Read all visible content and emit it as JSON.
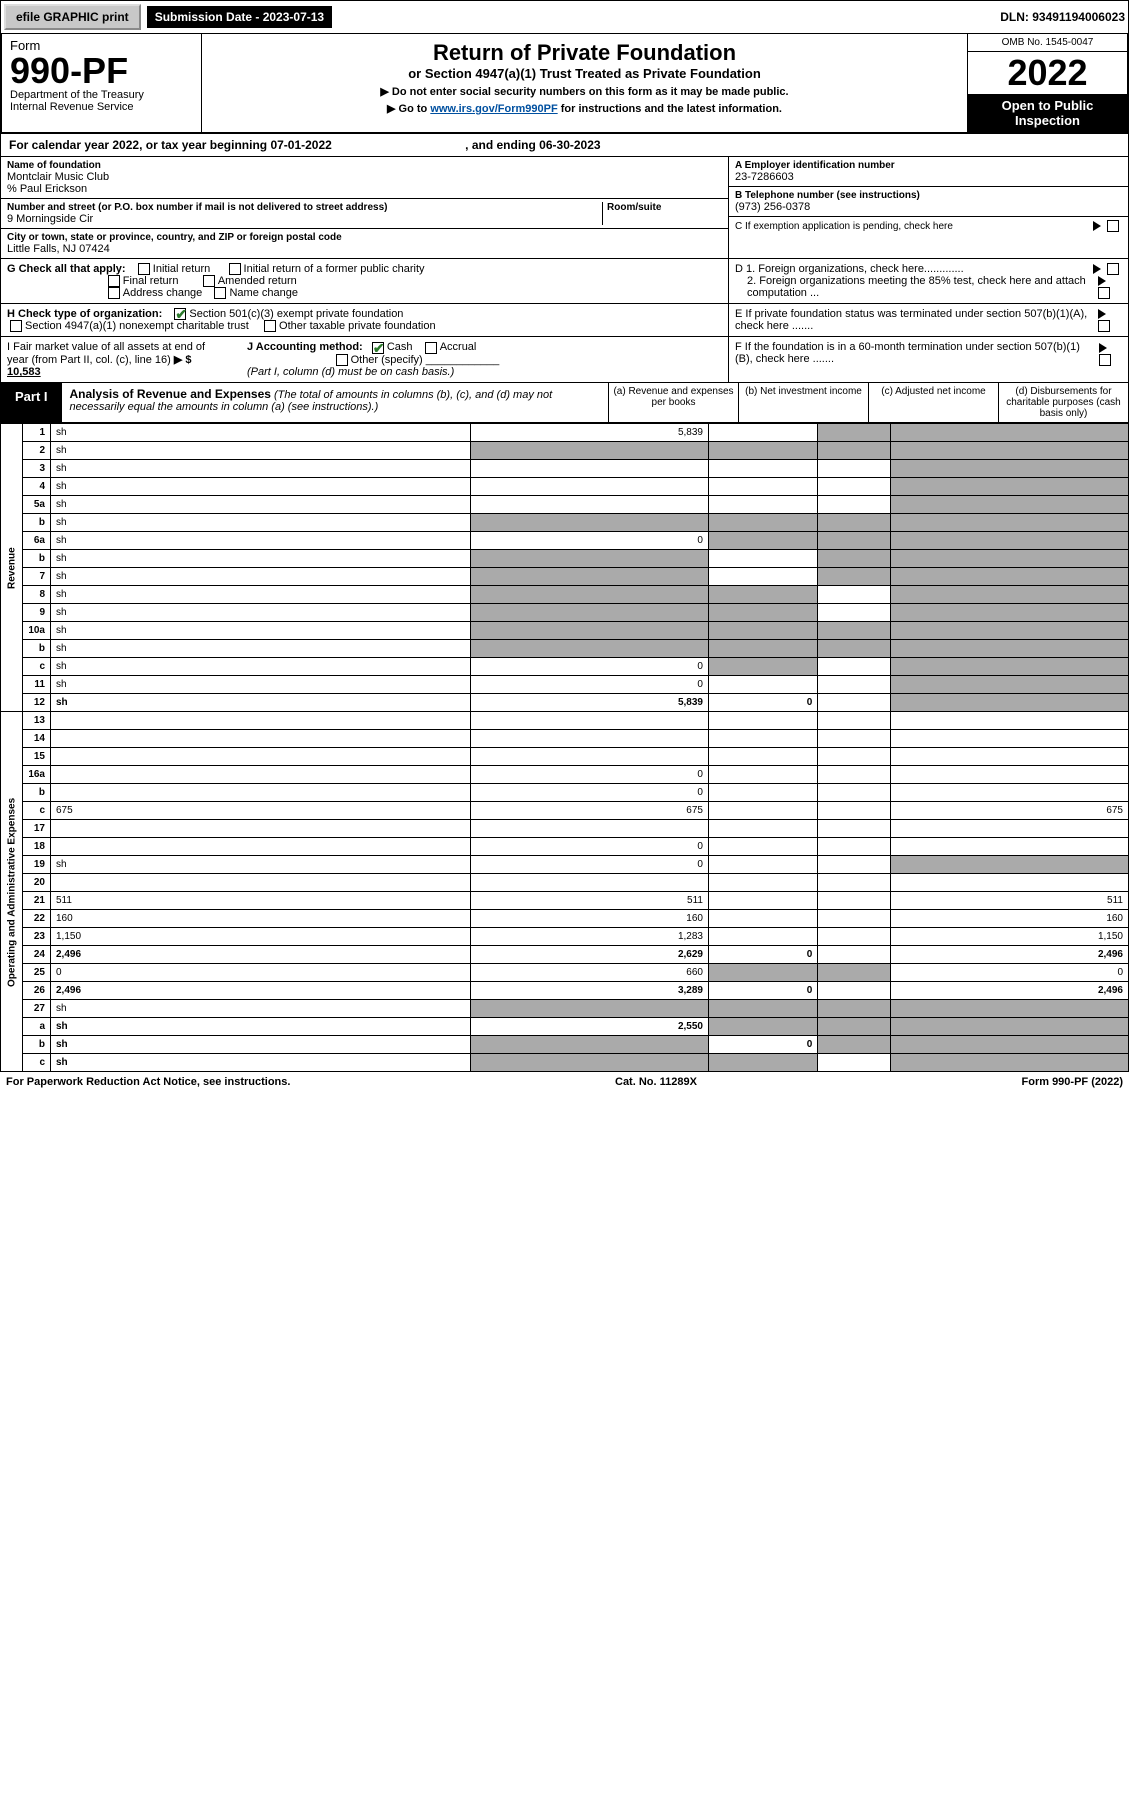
{
  "topbar": {
    "efile": "efile GRAPHIC print",
    "subdate_lbl": "Submission Date - 2023-07-13",
    "dln": "DLN: 93491194006023"
  },
  "header": {
    "form": "Form",
    "num": "990-PF",
    "dept": "Department of the Treasury",
    "irs": "Internal Revenue Service",
    "title": "Return of Private Foundation",
    "sub1": "or Section 4947(a)(1) Trust Treated as Private Foundation",
    "sub2a": "▶ Do not enter social security numbers on this form as it may be made public.",
    "sub2b": "▶ Go to www.irs.gov/Form990PF for instructions and the latest information.",
    "omb": "OMB No. 1545-0047",
    "year": "2022",
    "open": "Open to Public Inspection"
  },
  "yearrow": {
    "a": "For calendar year 2022, or tax year beginning 07-01-2022",
    "b": ", and ending 06-30-2023"
  },
  "id_block": {
    "name_lbl": "Name of foundation",
    "name": "Montclair Music Club",
    "care": "% Paul Erickson",
    "addr_lbl": "Number and street (or P.O. box number if mail is not delivered to street address)",
    "addr": "9 Morningside Cir",
    "room_lbl": "Room/suite",
    "city_lbl": "City or town, state or province, country, and ZIP or foreign postal code",
    "city": "Little Falls, NJ  07424",
    "ein_lbl": "A Employer identification number",
    "ein": "23-7286603",
    "tel_lbl": "B Telephone number (see instructions)",
    "tel": "(973) 256-0378",
    "c": "C If exemption application is pending, check here",
    "d1": "D 1. Foreign organizations, check here.............",
    "d2": "2. Foreign organizations meeting the 85% test, check here and attach computation ...",
    "e": "E If private foundation status was terminated under section 507(b)(1)(A), check here .......",
    "f": "F If the foundation is in a 60-month termination under section 507(b)(1)(B), check here ......."
  },
  "g": {
    "lbl": "G Check all that apply:",
    "o1": "Initial return",
    "o2": "Final return",
    "o3": "Address change",
    "o4": "Initial return of a former public charity",
    "o5": "Amended return",
    "o6": "Name change"
  },
  "h": {
    "lbl": "H Check type of organization:",
    "o1": "Section 501(c)(3) exempt private foundation",
    "o2": "Section 4947(a)(1) nonexempt charitable trust",
    "o3": "Other taxable private foundation"
  },
  "i": {
    "lbl": "I Fair market value of all assets at end of year (from Part II, col. (c), line 16)",
    "val": "10,583"
  },
  "j": {
    "lbl": "J Accounting method:",
    "o1": "Cash",
    "o2": "Accrual",
    "o3": "Other (specify)",
    "note": "(Part I, column (d) must be on cash basis.)"
  },
  "part1": {
    "tag": "Part I",
    "title": "Analysis of Revenue and Expenses",
    "note": "(The total of amounts in columns (b), (c), and (d) may not necessarily equal the amounts in column (a) (see instructions).)",
    "cols": {
      "a": "(a) Revenue and expenses per books",
      "b": "(b) Net investment income",
      "c": "(c) Adjusted net income",
      "d": "(d) Disbursements for charitable purposes (cash basis only)"
    }
  },
  "vlabels": {
    "rev": "Revenue",
    "exp": "Operating and Administrative Expenses"
  },
  "rows": [
    {
      "n": "1",
      "d": "sh",
      "a": "5,839",
      "b": "",
      "c": "sh"
    },
    {
      "n": "2",
      "d": "sh",
      "a": "sh",
      "b": "sh",
      "c": "sh"
    },
    {
      "n": "3",
      "d": "sh",
      "a": "",
      "b": "",
      "c": ""
    },
    {
      "n": "4",
      "d": "sh",
      "a": "",
      "b": "",
      "c": ""
    },
    {
      "n": "5a",
      "d": "sh",
      "a": "",
      "b": "",
      "c": ""
    },
    {
      "n": "b",
      "d": "sh",
      "a": "sh",
      "b": "sh",
      "c": "sh"
    },
    {
      "n": "6a",
      "d": "sh",
      "a": "0",
      "b": "sh",
      "c": "sh"
    },
    {
      "n": "b",
      "d": "sh",
      "a": "sh",
      "b": "",
      "c": "sh"
    },
    {
      "n": "7",
      "d": "sh",
      "a": "sh",
      "b": "",
      "c": "sh"
    },
    {
      "n": "8",
      "d": "sh",
      "a": "sh",
      "b": "sh",
      "c": ""
    },
    {
      "n": "9",
      "d": "sh",
      "a": "sh",
      "b": "sh",
      "c": ""
    },
    {
      "n": "10a",
      "d": "sh",
      "a": "sh",
      "b": "sh",
      "c": "sh"
    },
    {
      "n": "b",
      "d": "sh",
      "a": "sh",
      "b": "sh",
      "c": "sh"
    },
    {
      "n": "c",
      "d": "sh",
      "a": "0",
      "b": "sh",
      "c": ""
    },
    {
      "n": "11",
      "d": "sh",
      "a": "0",
      "b": "",
      "c": ""
    },
    {
      "n": "12",
      "d": "sh",
      "a": "5,839",
      "b": "0",
      "c": "",
      "bold": true
    },
    {
      "n": "13",
      "d": "",
      "a": "",
      "b": "",
      "c": ""
    },
    {
      "n": "14",
      "d": "",
      "a": "",
      "b": "",
      "c": ""
    },
    {
      "n": "15",
      "d": "",
      "a": "",
      "b": "",
      "c": ""
    },
    {
      "n": "16a",
      "d": "",
      "a": "0",
      "b": "",
      "c": ""
    },
    {
      "n": "b",
      "d": "",
      "a": "0",
      "b": "",
      "c": ""
    },
    {
      "n": "c",
      "d": "675",
      "a": "675",
      "b": "",
      "c": ""
    },
    {
      "n": "17",
      "d": "",
      "a": "",
      "b": "",
      "c": ""
    },
    {
      "n": "18",
      "d": "",
      "a": "0",
      "b": "",
      "c": ""
    },
    {
      "n": "19",
      "d": "sh",
      "a": "0",
      "b": "",
      "c": ""
    },
    {
      "n": "20",
      "d": "",
      "a": "",
      "b": "",
      "c": ""
    },
    {
      "n": "21",
      "d": "511",
      "a": "511",
      "b": "",
      "c": ""
    },
    {
      "n": "22",
      "d": "160",
      "a": "160",
      "b": "",
      "c": ""
    },
    {
      "n": "23",
      "d": "1,150",
      "a": "1,283",
      "b": "",
      "c": ""
    },
    {
      "n": "24",
      "d": "2,496",
      "a": "2,629",
      "b": "0",
      "c": "",
      "bold": true
    },
    {
      "n": "25",
      "d": "0",
      "a": "660",
      "b": "sh",
      "c": "sh"
    },
    {
      "n": "26",
      "d": "2,496",
      "a": "3,289",
      "b": "0",
      "c": "",
      "bold": true
    },
    {
      "n": "27",
      "d": "sh",
      "a": "sh",
      "b": "sh",
      "c": "sh"
    },
    {
      "n": "a",
      "d": "sh",
      "a": "2,550",
      "b": "sh",
      "c": "sh",
      "bold": true
    },
    {
      "n": "b",
      "d": "sh",
      "a": "sh",
      "b": "0",
      "c": "sh",
      "bold": true
    },
    {
      "n": "c",
      "d": "sh",
      "a": "sh",
      "b": "sh",
      "c": "",
      "bold": true
    }
  ],
  "footer": {
    "l": "For Paperwork Reduction Act Notice, see instructions.",
    "c": "Cat. No. 11289X",
    "r": "Form 990-PF (2022)"
  }
}
